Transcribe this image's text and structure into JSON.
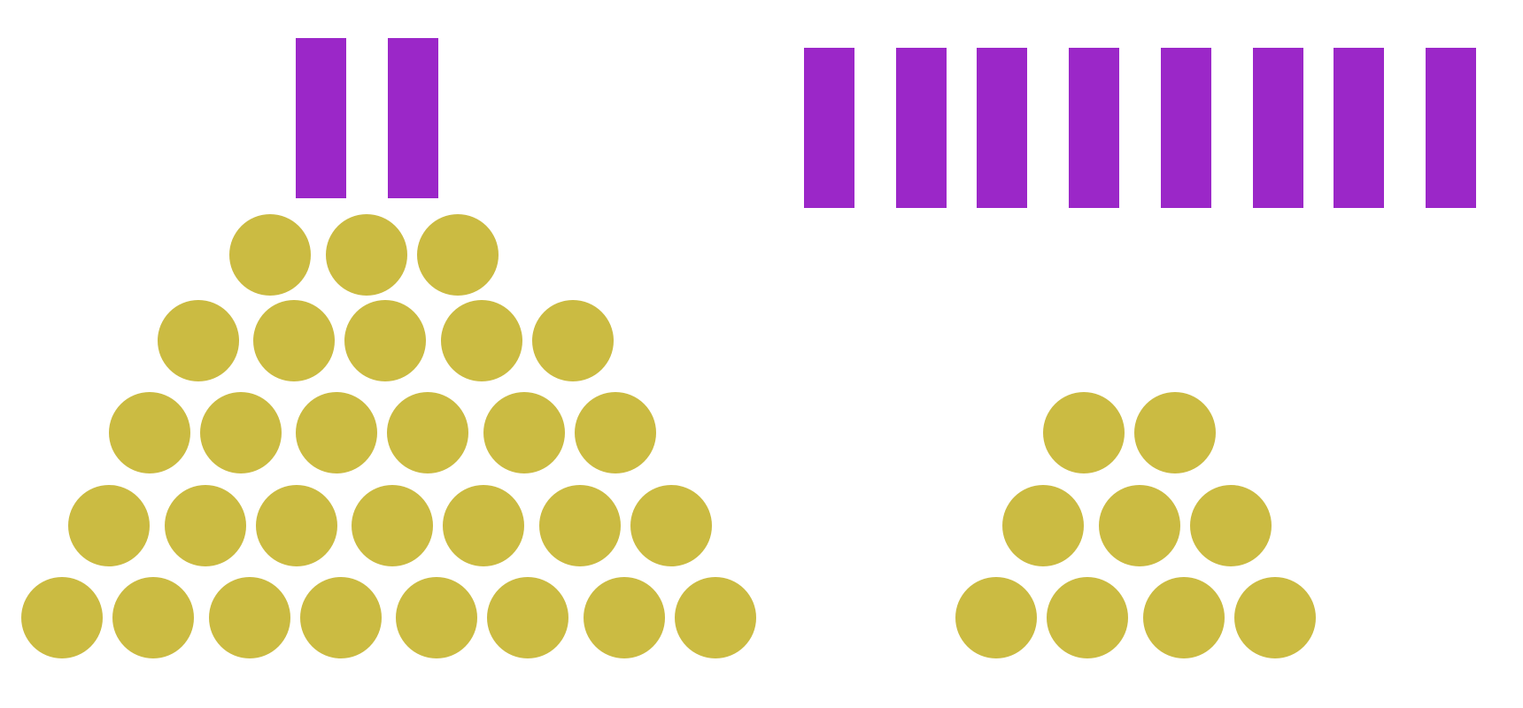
{
  "colors": {
    "background": "#ffffff",
    "bar": "#9b27c8",
    "dot": "#cbbb42"
  },
  "groups": [
    {
      "name": "left-group",
      "bar_count": 2,
      "dot_rows": [
        3,
        5,
        6,
        7,
        8
      ]
    },
    {
      "name": "right-group",
      "bar_count": 8,
      "dot_rows": [
        2,
        3,
        4
      ]
    }
  ]
}
